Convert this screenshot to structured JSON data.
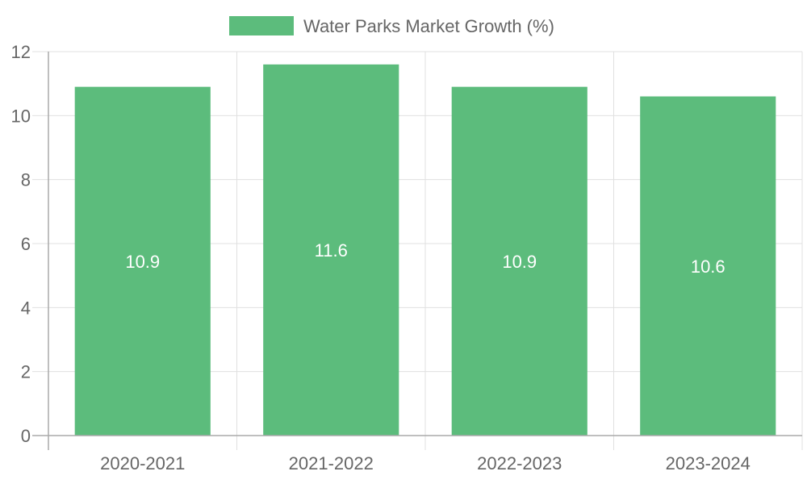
{
  "chart_data": {
    "type": "bar",
    "title": "",
    "xlabel": "",
    "ylabel": "",
    "categories": [
      "2020-2021",
      "2021-2022",
      "2022-2023",
      "2023-2024"
    ],
    "series": [
      {
        "name": "Water Parks Market Growth (%)",
        "values": [
          10.9,
          11.6,
          10.9,
          10.6
        ],
        "color": "#5cbc7c"
      }
    ],
    "data_labels": [
      "10.9",
      "11.6",
      "10.9",
      "10.6"
    ],
    "ylim": [
      0,
      12
    ],
    "yticks": [
      "0",
      "2",
      "4",
      "6",
      "8",
      "10",
      "12"
    ],
    "grid": true,
    "legend_position": "top-center"
  }
}
